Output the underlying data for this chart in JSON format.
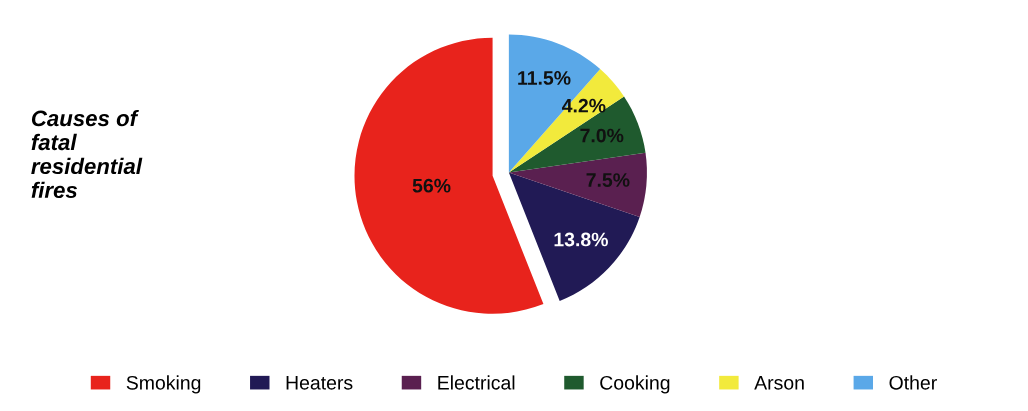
{
  "chart_data": {
    "type": "pie",
    "title": "Causes of\nfatal\nresidential\nfires",
    "categories": [
      "Smoking",
      "Heaters",
      "Electrical",
      "Cooking",
      "Arson",
      "Other"
    ],
    "values": [
      56,
      13.8,
      7.5,
      7.0,
      4.2,
      11.5
    ],
    "colors": [
      "#e8231c",
      "#211a55",
      "#5a2050",
      "#1f5a2e",
      "#f2ea3c",
      "#5aa8e8"
    ],
    "value_labels": [
      "56%",
      "13.8%",
      "7.5%",
      "7.0%",
      "4.2%",
      "11.5%"
    ],
    "legend": "bottom"
  }
}
